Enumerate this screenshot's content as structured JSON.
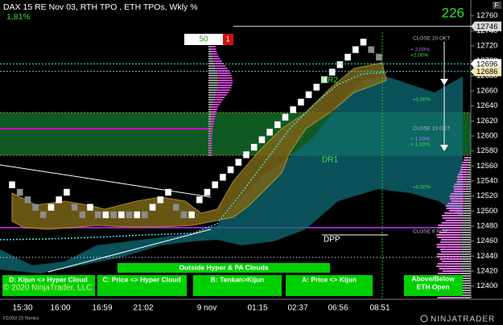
{
  "chart_data": {
    "type": "renko",
    "title": "DAX 15 RE Nov 03, RTH TPO , ETH TPOs, Wkly %",
    "subtitle": "1,81%",
    "counter": "226",
    "order_qty": "50",
    "order_count": "1",
    "instrument": "FDXM 15 Renko",
    "copyright": "© 2020 NinjaTrader, LLC",
    "logo": "NINJATRADER",
    "corner": "F",
    "up_color": "#ffffff",
    "down_color": "#8c8c8c",
    "open": [
      12530,
      12530,
      12520,
      12510,
      12500,
      12500,
      12510,
      12520,
      12510,
      12500,
      12500,
      12500,
      12490,
      12500,
      12490,
      12500,
      12490,
      12500,
      12500,
      12510,
      12520,
      12510,
      12500,
      12490,
      12510,
      12520,
      12530,
      12540,
      12550,
      12560,
      12570,
      12580,
      12590,
      12600,
      12610,
      12620,
      12630,
      12640,
      12650,
      12660,
      12670,
      12680,
      12690,
      12700,
      12710,
      12720,
      12720,
      12710
    ],
    "close": [
      12540,
      12520,
      12510,
      12500,
      12490,
      12510,
      12520,
      12530,
      12500,
      12490,
      12510,
      12490,
      12500,
      12490,
      12500,
      12490,
      12500,
      12490,
      12510,
      12520,
      12530,
      12500,
      12490,
      12500,
      12520,
      12530,
      12540,
      12550,
      12560,
      12570,
      12580,
      12590,
      12600,
      12610,
      12620,
      12630,
      12640,
      12650,
      12660,
      12670,
      12680,
      12690,
      12700,
      12710,
      12720,
      12730,
      12710,
      12700
    ],
    "time_labels": [
      "15:30",
      "16:00",
      "16:59",
      "21:02",
      "9 nov",
      "01:15",
      "02:37",
      "06:56",
      "08:51"
    ],
    "ylim": [
      12390,
      12775
    ],
    "yticks": [
      12400,
      12420,
      12440,
      12460,
      12480,
      12500,
      12520,
      12540,
      12560,
      12580,
      12600,
      12620,
      12640,
      12660,
      12680,
      12700,
      12720,
      12740,
      12760
    ],
    "price_tags": [
      {
        "value": 12746,
        "color": "#d9d9d9"
      },
      {
        "value": 12696,
        "color": "#ffffff"
      },
      {
        "value": 12686,
        "color": "#f4e8b0"
      }
    ],
    "annotations": [
      "CLOSE 20 OKT",
      "+ 2,00%",
      "+2,00%",
      "DR2",
      "+1,50%",
      "CLOSE 23 OKT",
      "+ 1,00%",
      "+ 1,00%",
      "DR1",
      "+0,50%",
      "CLOSE 6 NOV",
      "DPP"
    ],
    "signals": [
      "D: Kijun <> Hyper Cloud",
      "Outside Hyper & PA Clouds",
      "C: Price <> Hyper Cloud",
      "B: Tenkan>Kijun",
      "A: Price <> Kijun",
      "Above/Below",
      "ETH Open"
    ]
  }
}
